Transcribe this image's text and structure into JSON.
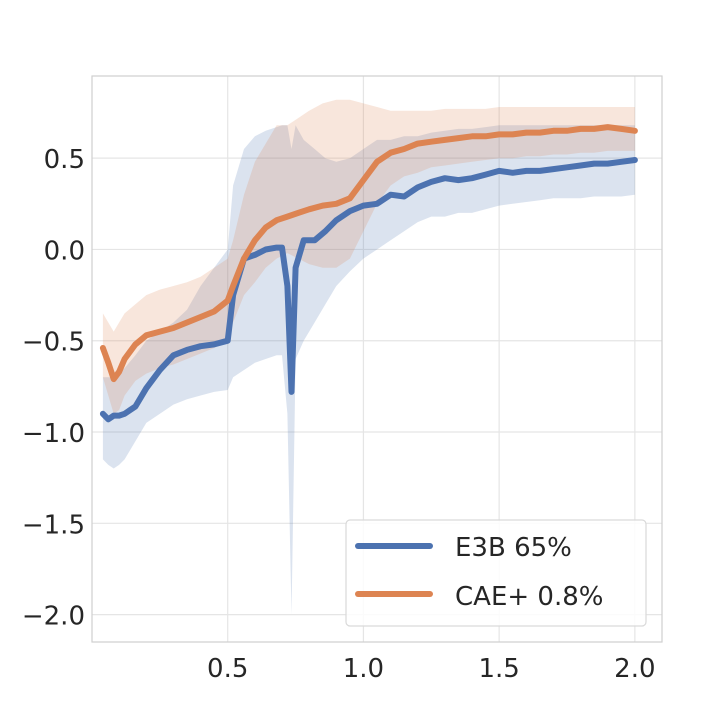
{
  "chart_data": {
    "type": "line",
    "title": "",
    "xlabel": "",
    "ylabel": "",
    "xlim": [
      0,
      2.1
    ],
    "ylim": [
      -2.15,
      0.95
    ],
    "grid": true,
    "legend_position": "bottom-right",
    "x_ticks": [
      0.5,
      1.0,
      1.5,
      2.0
    ],
    "x_tick_labels": [
      "0.5",
      "1.0",
      "1.5",
      "2.0"
    ],
    "y_ticks": [
      -2.0,
      -1.5,
      -1.0,
      -0.5,
      0.0,
      0.5
    ],
    "y_tick_labels": [
      "−2.0",
      "−1.5",
      "−1.0",
      "−0.5",
      "0.0",
      "0.5"
    ],
    "series": [
      {
        "name": "E3B 65%",
        "color": "#4c72b0",
        "x": [
          0.04,
          0.06,
          0.08,
          0.1,
          0.12,
          0.16,
          0.2,
          0.25,
          0.3,
          0.35,
          0.4,
          0.45,
          0.5,
          0.52,
          0.56,
          0.6,
          0.64,
          0.68,
          0.7,
          0.72,
          0.735,
          0.75,
          0.78,
          0.82,
          0.86,
          0.9,
          0.95,
          1.0,
          1.05,
          1.1,
          1.15,
          1.2,
          1.25,
          1.3,
          1.35,
          1.4,
          1.45,
          1.5,
          1.55,
          1.6,
          1.65,
          1.7,
          1.75,
          1.8,
          1.85,
          1.9,
          1.95,
          2.0
        ],
        "y": [
          -0.9,
          -0.93,
          -0.91,
          -0.91,
          -0.9,
          -0.86,
          -0.76,
          -0.66,
          -0.58,
          -0.55,
          -0.53,
          -0.52,
          -0.5,
          -0.25,
          -0.05,
          -0.03,
          0.0,
          0.01,
          0.01,
          -0.2,
          -0.78,
          -0.1,
          0.05,
          0.05,
          0.1,
          0.16,
          0.21,
          0.24,
          0.25,
          0.3,
          0.29,
          0.34,
          0.37,
          0.39,
          0.38,
          0.39,
          0.41,
          0.43,
          0.42,
          0.43,
          0.43,
          0.44,
          0.45,
          0.46,
          0.47,
          0.47,
          0.48,
          0.49
        ],
        "upper": [
          -0.7,
          -0.7,
          -0.7,
          -0.68,
          -0.65,
          -0.58,
          -0.5,
          -0.45,
          -0.4,
          -0.33,
          -0.2,
          -0.1,
          0.0,
          0.35,
          0.55,
          0.62,
          0.65,
          0.67,
          0.68,
          0.68,
          0.55,
          0.68,
          0.6,
          0.55,
          0.5,
          0.48,
          0.5,
          0.55,
          0.6,
          0.6,
          0.62,
          0.62,
          0.64,
          0.65,
          0.66,
          0.66,
          0.67,
          0.68,
          0.68,
          0.68,
          0.68,
          0.68,
          0.68,
          0.68,
          0.68,
          0.68,
          0.68,
          0.68
        ],
        "lower": [
          -1.15,
          -1.18,
          -1.2,
          -1.18,
          -1.15,
          -1.05,
          -0.95,
          -0.9,
          -0.85,
          -0.82,
          -0.8,
          -0.78,
          -0.77,
          -0.7,
          -0.66,
          -0.62,
          -0.6,
          -0.58,
          -0.58,
          -0.9,
          -2.0,
          -0.6,
          -0.5,
          -0.4,
          -0.3,
          -0.2,
          -0.12,
          -0.05,
          0.0,
          0.05,
          0.1,
          0.15,
          0.18,
          0.18,
          0.2,
          0.2,
          0.22,
          0.24,
          0.25,
          0.26,
          0.27,
          0.28,
          0.28,
          0.28,
          0.29,
          0.29,
          0.29,
          0.3
        ]
      },
      {
        "name": "CAE+ 0.8%",
        "color": "#dd8452",
        "x": [
          0.04,
          0.06,
          0.08,
          0.1,
          0.12,
          0.16,
          0.2,
          0.25,
          0.3,
          0.35,
          0.4,
          0.45,
          0.5,
          0.52,
          0.56,
          0.6,
          0.64,
          0.68,
          0.72,
          0.76,
          0.8,
          0.85,
          0.9,
          0.95,
          1.0,
          1.05,
          1.1,
          1.15,
          1.2,
          1.25,
          1.3,
          1.35,
          1.4,
          1.45,
          1.5,
          1.55,
          1.6,
          1.65,
          1.7,
          1.75,
          1.8,
          1.85,
          1.9,
          1.95,
          2.0
        ],
        "y": [
          -0.54,
          -0.62,
          -0.71,
          -0.67,
          -0.6,
          -0.52,
          -0.47,
          -0.45,
          -0.43,
          -0.4,
          -0.37,
          -0.34,
          -0.28,
          -0.2,
          -0.05,
          0.05,
          0.12,
          0.16,
          0.18,
          0.2,
          0.22,
          0.24,
          0.25,
          0.28,
          0.38,
          0.48,
          0.53,
          0.55,
          0.58,
          0.59,
          0.6,
          0.61,
          0.62,
          0.62,
          0.63,
          0.63,
          0.64,
          0.64,
          0.65,
          0.65,
          0.66,
          0.66,
          0.67,
          0.66,
          0.65
        ],
        "upper": [
          -0.35,
          -0.4,
          -0.45,
          -0.4,
          -0.35,
          -0.3,
          -0.25,
          -0.22,
          -0.2,
          -0.18,
          -0.15,
          -0.1,
          -0.05,
          0.05,
          0.3,
          0.48,
          0.58,
          0.68,
          0.68,
          0.72,
          0.76,
          0.8,
          0.82,
          0.82,
          0.8,
          0.78,
          0.76,
          0.76,
          0.76,
          0.76,
          0.77,
          0.77,
          0.77,
          0.77,
          0.78,
          0.78,
          0.78,
          0.78,
          0.78,
          0.78,
          0.78,
          0.78,
          0.78,
          0.78,
          0.78
        ],
        "lower": [
          -0.7,
          -0.8,
          -0.9,
          -0.88,
          -0.8,
          -0.72,
          -0.68,
          -0.65,
          -0.63,
          -0.6,
          -0.57,
          -0.54,
          -0.5,
          -0.4,
          -0.25,
          -0.18,
          -0.1,
          -0.05,
          -0.02,
          -0.05,
          -0.08,
          -0.1,
          -0.1,
          -0.05,
          0.1,
          0.25,
          0.35,
          0.4,
          0.42,
          0.45,
          0.46,
          0.47,
          0.48,
          0.49,
          0.5,
          0.5,
          0.51,
          0.51,
          0.52,
          0.52,
          0.53,
          0.53,
          0.54,
          0.54,
          0.54
        ]
      }
    ]
  }
}
